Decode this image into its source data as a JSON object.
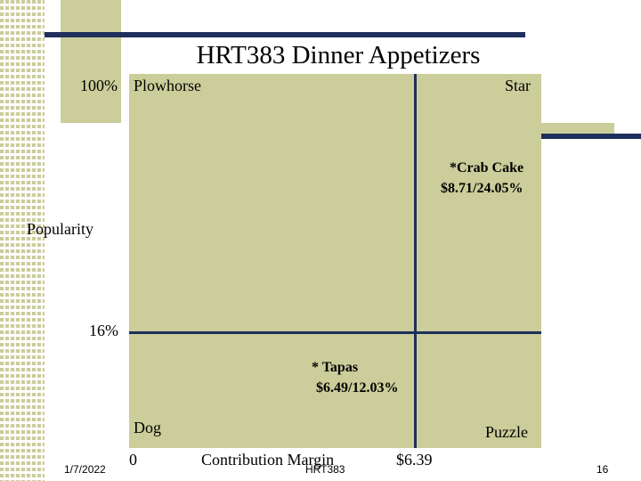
{
  "slide": {
    "title": "HRT383 Dinner Appetizers",
    "footer_date": "1/7/2022",
    "footer_center": "HRT383",
    "page_number": "16"
  },
  "matrix": {
    "y_top_label": "100%",
    "y_axis_label": "Popularity",
    "y_threshold_label": "16%",
    "x_origin_label": "0",
    "x_axis_label": "Contribution Margin",
    "x_threshold_label": "$6.39",
    "quadrants": {
      "top_left": "Plowhorse",
      "top_right": "Star",
      "bottom_left": "Dog",
      "bottom_right": "Puzzle"
    },
    "items": [
      {
        "name": "*Crab Cake",
        "detail": "$8.71/24.05%"
      },
      {
        "name": "* Tapas",
        "detail": "$6.49/12.03%"
      }
    ]
  },
  "colors": {
    "plot_fill": "#cbcd9a",
    "divider": "#1f2f5c"
  }
}
